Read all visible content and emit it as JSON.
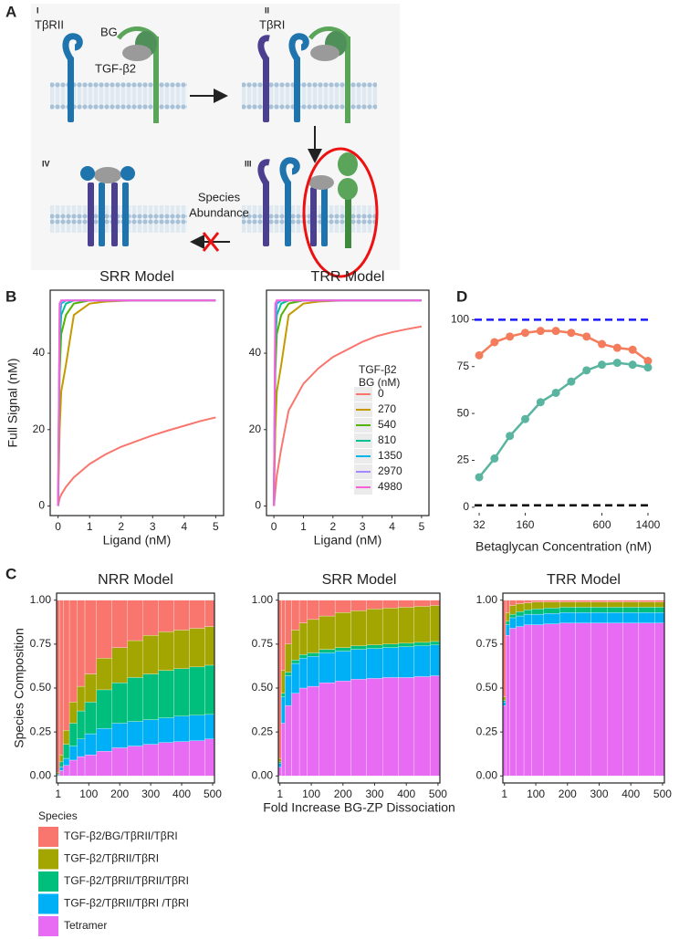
{
  "panel_labels": [
    "A",
    "B",
    "C",
    "D"
  ],
  "diagram": {
    "stage_numerals": [
      "I",
      "II",
      "III",
      "IV"
    ],
    "receptor_II": "TβRII",
    "receptor_I": "TβRI",
    "coreceptor": "BG",
    "ligand": "TGF-β2",
    "arrow_note": [
      "Species",
      "Abundance"
    ]
  },
  "chart_data": [
    {
      "type": "line",
      "title": "SRR Model",
      "x_label": "Ligand (nM)",
      "y_label": "Full Signal (nM)",
      "frame": true,
      "x": [
        0,
        0.05,
        0.1,
        0.25,
        0.5,
        1,
        1.5,
        2,
        2.5,
        3,
        3.5,
        4,
        4.5,
        5
      ],
      "xlim": [
        -0.25,
        5.25
      ],
      "xticks": [
        0,
        1,
        2,
        3,
        4,
        5
      ],
      "ylim": [
        -2.5,
        56.5
      ],
      "yticks": [
        0,
        20,
        40
      ],
      "series": [
        {
          "color": "#F8766D",
          "values": [
            0,
            2,
            3,
            5,
            7.5,
            11,
            13.5,
            15.5,
            17,
            18.5,
            19.8,
            21,
            22.2,
            23.2
          ]
        },
        {
          "color": "#C49A00",
          "values": [
            0,
            20,
            30,
            37,
            50,
            53,
            53.5,
            53.7,
            53.8,
            53.8,
            53.8,
            53.8,
            53.8,
            53.8
          ]
        },
        {
          "color": "#53B400",
          "values": [
            0,
            35,
            45,
            50,
            53,
            53.8,
            53.8,
            53.8,
            53.8,
            53.8,
            53.8,
            53.8,
            53.8,
            53.8
          ]
        },
        {
          "color": "#00C094",
          "values": [
            0,
            42,
            50,
            53,
            53.8,
            53.8,
            53.8,
            53.8,
            53.8,
            53.8,
            53.8,
            53.8,
            53.8,
            53.8
          ]
        },
        {
          "color": "#00B6EB",
          "values": [
            0,
            48,
            53,
            53.8,
            53.8,
            53.8,
            53.8,
            53.8,
            53.8,
            53.8,
            53.8,
            53.8,
            53.8,
            53.8
          ]
        },
        {
          "color": "#A58AFF",
          "values": [
            0,
            52,
            53.8,
            53.8,
            53.8,
            53.8,
            53.8,
            53.8,
            53.8,
            53.8,
            53.8,
            53.8,
            53.8,
            53.8
          ]
        },
        {
          "color": "#FB61D7",
          "values": [
            0,
            53,
            53.8,
            53.8,
            53.8,
            53.8,
            53.8,
            53.8,
            53.8,
            53.8,
            53.8,
            53.8,
            53.8,
            53.8
          ]
        }
      ]
    },
    {
      "type": "line",
      "title": "TRR Model",
      "x_label": "Ligand (nM)",
      "frame": true,
      "legend_title": [
        "TGF-β2",
        "BG (nM)"
      ],
      "x": [
        0,
        0.05,
        0.1,
        0.25,
        0.5,
        1,
        1.5,
        2,
        2.5,
        3,
        3.5,
        4,
        4.5,
        5
      ],
      "xlim": [
        -0.25,
        5.25
      ],
      "xticks": [
        0,
        1,
        2,
        3,
        4,
        5
      ],
      "ylim": [
        -2.5,
        56.5
      ],
      "yticks": [
        0,
        20,
        40
      ],
      "series": [
        {
          "name": "0",
          "color": "#F8766D",
          "values": [
            0,
            4,
            8,
            15,
            25,
            32,
            36,
            39,
            41,
            43,
            44.5,
            45.5,
            46.3,
            47
          ]
        },
        {
          "name": "270",
          "color": "#C49A00",
          "values": [
            0,
            20,
            30,
            37,
            50,
            53,
            53.5,
            53.7,
            53.8,
            53.8,
            53.8,
            53.8,
            53.8,
            53.8
          ]
        },
        {
          "name": "540",
          "color": "#53B400",
          "values": [
            0,
            35,
            45,
            50,
            53,
            53.8,
            53.8,
            53.8,
            53.8,
            53.8,
            53.8,
            53.8,
            53.8,
            53.8
          ]
        },
        {
          "name": "810",
          "color": "#00C094",
          "values": [
            0,
            42,
            50,
            53,
            53.8,
            53.8,
            53.8,
            53.8,
            53.8,
            53.8,
            53.8,
            53.8,
            53.8,
            53.8
          ]
        },
        {
          "name": "1350",
          "color": "#00B6EB",
          "values": [
            0,
            48,
            53,
            53.8,
            53.8,
            53.8,
            53.8,
            53.8,
            53.8,
            53.8,
            53.8,
            53.8,
            53.8,
            53.8
          ]
        },
        {
          "name": "2970",
          "color": "#A58AFF",
          "values": [
            0,
            52,
            53.8,
            53.8,
            53.8,
            53.8,
            53.8,
            53.8,
            53.8,
            53.8,
            53.8,
            53.8,
            53.8,
            53.8
          ]
        },
        {
          "name": "4980",
          "color": "#FB61D7",
          "values": [
            0,
            53,
            53.8,
            53.8,
            53.8,
            53.8,
            53.8,
            53.8,
            53.8,
            53.8,
            53.8,
            53.8,
            53.8,
            53.8
          ]
        }
      ]
    },
    {
      "type": "line",
      "x_label": "Betaglycan Concentration (nM)",
      "frame": false,
      "markers": true,
      "categories": [
        "32",
        null,
        null,
        "160",
        null,
        null,
        null,
        null,
        "600",
        null,
        null,
        "1400"
      ],
      "ylim": [
        -3,
        106
      ],
      "yticks": [
        0,
        25,
        50,
        75,
        100
      ],
      "hlines": [
        {
          "value": 100,
          "color": "#1a1aff"
        },
        {
          "value": 1,
          "color": "#000000"
        }
      ],
      "series": [
        {
          "color": "#F47C5C",
          "values": [
            81,
            88,
            91,
            93,
            94,
            94,
            93,
            91,
            87,
            85,
            84,
            78
          ]
        },
        {
          "color": "#5AB5A0",
          "values": [
            16,
            26,
            38,
            47,
            56,
            61,
            67,
            73,
            76,
            77,
            76,
            74.5
          ]
        }
      ]
    },
    {
      "type": "bar",
      "stacked": true,
      "title": "NRR Model",
      "y_label": "Species Composition",
      "frame": true,
      "legend_title": "Species",
      "x": [
        1,
        10,
        25,
        50,
        75,
        100,
        150,
        200,
        250,
        300,
        350,
        400,
        450,
        500
      ],
      "xlim": [
        -4,
        506
      ],
      "xticks": [
        1,
        100,
        200,
        300,
        400,
        500
      ],
      "ylim": [
        -0.04,
        1.04
      ],
      "yticks": [
        {
          "value": 0,
          "label": "0.00"
        },
        {
          "value": 0.25,
          "label": "0.25"
        },
        {
          "value": 0.5,
          "label": "0.50"
        },
        {
          "value": 0.75,
          "label": "0.75"
        },
        {
          "value": 1,
          "label": "1.00"
        }
      ],
      "series": [
        {
          "name": "Tetramer",
          "color": "#E76BF3",
          "values": [
            0,
            0.03,
            0.06,
            0.09,
            0.11,
            0.12,
            0.14,
            0.16,
            0.17,
            0.18,
            0.19,
            0.195,
            0.2,
            0.21
          ]
        },
        {
          "name": "TGF-β2/TβRII/TβRI /TβRI",
          "color": "#00B0F6",
          "values": [
            0.005,
            0.02,
            0.04,
            0.08,
            0.1,
            0.12,
            0.13,
            0.14,
            0.14,
            0.14,
            0.14,
            0.145,
            0.145,
            0.14
          ]
        },
        {
          "name": "TGF-β2/TβRII/TβRII/TβRI",
          "color": "#00BF7D",
          "values": [
            0.005,
            0.03,
            0.08,
            0.13,
            0.16,
            0.18,
            0.22,
            0.23,
            0.25,
            0.26,
            0.27,
            0.27,
            0.275,
            0.28
          ]
        },
        {
          "name": "TGF-β2/TβRII/TβRI",
          "color": "#A3A500",
          "values": [
            0.01,
            0.04,
            0.08,
            0.12,
            0.14,
            0.16,
            0.18,
            0.2,
            0.21,
            0.22,
            0.22,
            0.22,
            0.22,
            0.22
          ]
        },
        {
          "name": "TGF-β2/BG/TβRII/TβRI",
          "color": "#F8766D",
          "values": [
            0.98,
            0.88,
            0.74,
            0.58,
            0.49,
            0.42,
            0.33,
            0.27,
            0.23,
            0.2,
            0.18,
            0.17,
            0.16,
            0.15
          ]
        }
      ]
    },
    {
      "type": "bar",
      "stacked": true,
      "title": "SRR Model",
      "x_label": "Fold Increase BG-ZP Dissociation",
      "frame": true,
      "x": [
        1,
        10,
        25,
        50,
        75,
        100,
        150,
        200,
        250,
        300,
        350,
        400,
        450,
        500
      ],
      "xlim": [
        -4,
        506
      ],
      "xticks": [
        1,
        100,
        200,
        300,
        400,
        500
      ],
      "ylim": [
        -0.04,
        1.04
      ],
      "yticks": [
        {
          "value": 0,
          "label": "0.00"
        },
        {
          "value": 0.25,
          "label": "0.25"
        },
        {
          "value": 0.5,
          "label": "0.50"
        },
        {
          "value": 0.75,
          "label": "0.75"
        },
        {
          "value": 1,
          "label": "1.00"
        }
      ],
      "series": [
        {
          "color": "#E76BF3",
          "values": [
            0.05,
            0.3,
            0.4,
            0.47,
            0.5,
            0.51,
            0.53,
            0.54,
            0.55,
            0.555,
            0.56,
            0.56,
            0.565,
            0.57
          ]
        },
        {
          "color": "#00B0F6",
          "values": [
            0.02,
            0.15,
            0.17,
            0.17,
            0.17,
            0.17,
            0.17,
            0.17,
            0.17,
            0.17,
            0.17,
            0.175,
            0.175,
            0.175
          ]
        },
        {
          "color": "#00BF7D",
          "values": [
            0.01,
            0.02,
            0.02,
            0.02,
            0.02,
            0.02,
            0.02,
            0.02,
            0.02,
            0.02,
            0.02,
            0.02,
            0.02,
            0.02
          ]
        },
        {
          "color": "#A3A500",
          "values": [
            0.02,
            0.13,
            0.16,
            0.17,
            0.18,
            0.19,
            0.19,
            0.2,
            0.2,
            0.205,
            0.205,
            0.205,
            0.205,
            0.205
          ]
        },
        {
          "color": "#F8766D",
          "values": [
            0.9,
            0.4,
            0.25,
            0.17,
            0.13,
            0.11,
            0.09,
            0.07,
            0.06,
            0.05,
            0.045,
            0.04,
            0.035,
            0.03
          ]
        }
      ]
    },
    {
      "type": "bar",
      "stacked": true,
      "title": "TRR Model",
      "frame": true,
      "x": [
        1,
        10,
        25,
        50,
        75,
        100,
        150,
        200,
        250,
        300,
        350,
        400,
        450,
        500
      ],
      "xlim": [
        -4,
        506
      ],
      "xticks": [
        1,
        100,
        200,
        300,
        400,
        500
      ],
      "ylim": [
        -0.04,
        1.04
      ],
      "yticks": [
        {
          "value": 0,
          "label": "0.00"
        },
        {
          "value": 0.25,
          "label": "0.25"
        },
        {
          "value": 0.5,
          "label": "0.50"
        },
        {
          "value": 0.75,
          "label": "0.75"
        },
        {
          "value": 1,
          "label": "1.00"
        }
      ],
      "series": [
        {
          "color": "#E76BF3",
          "values": [
            0.4,
            0.8,
            0.84,
            0.85,
            0.86,
            0.86,
            0.865,
            0.87,
            0.87,
            0.87,
            0.87,
            0.87,
            0.87,
            0.87
          ]
        },
        {
          "color": "#00B0F6",
          "values": [
            0.02,
            0.06,
            0.06,
            0.06,
            0.06,
            0.06,
            0.06,
            0.06,
            0.06,
            0.06,
            0.06,
            0.06,
            0.06,
            0.06
          ]
        },
        {
          "color": "#00BF7D",
          "values": [
            0.01,
            0.02,
            0.02,
            0.025,
            0.025,
            0.03,
            0.03,
            0.03,
            0.03,
            0.03,
            0.03,
            0.03,
            0.03,
            0.03
          ]
        },
        {
          "color": "#A3A500",
          "values": [
            0.02,
            0.05,
            0.05,
            0.045,
            0.04,
            0.04,
            0.035,
            0.03,
            0.03,
            0.03,
            0.03,
            0.03,
            0.03,
            0.03
          ]
        },
        {
          "color": "#F8766D",
          "values": [
            0.55,
            0.07,
            0.03,
            0.02,
            0.015,
            0.01,
            0.01,
            0.01,
            0.01,
            0.01,
            0.01,
            0.01,
            0.01,
            0.01
          ]
        }
      ]
    }
  ]
}
